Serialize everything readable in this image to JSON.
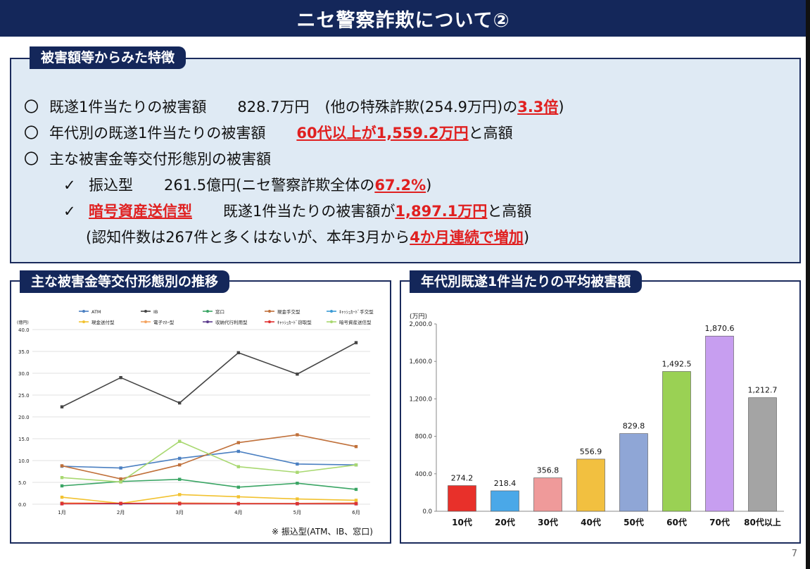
{
  "title": "ニセ警察詐欺について②",
  "features": {
    "tag": "被害額等からみた特徴",
    "b1": {
      "mark": "〇",
      "text": "既遂1件当たりの被害額",
      "value": "828.7万円",
      "note_pre": "(他の特殊詐欺(254.9万円)の",
      "note_red": "3.3倍",
      "note_post": ")"
    },
    "b2": {
      "mark": "〇",
      "text": "年代別の既遂1件当たりの被害額",
      "red": "60代以上が1,559.2万円",
      "post": "と高額"
    },
    "b3": {
      "mark": "〇",
      "text": "主な被害金等交付形態別の被害額"
    },
    "s1": {
      "mark": "✓",
      "label": "振込型",
      "value": "261.5億円(ニセ警察詐欺全体の",
      "red": "67.2%",
      "post": ")"
    },
    "s2": {
      "mark": "✓",
      "red_label": "暗号資産送信型",
      "text": "既遂1件当たりの被害額が",
      "red": "1,897.1万円",
      "post": "と高額"
    },
    "s3": {
      "pre": "(認知件数は267件と多くはないが、本年3月から",
      "red": "4か月連続で増加",
      "post": ")"
    }
  },
  "left_tag": "主な被害金等交付形態別の推移",
  "right_tag": "年代別既遂1件当たりの平均被害額",
  "left_note": "※ 振込型(ATM、IB、窓口)",
  "page_number": "7",
  "chart_data": [
    {
      "type": "line",
      "unit_label": "(億円)",
      "categories": [
        "1月",
        "2月",
        "3月",
        "4月",
        "5月",
        "6月"
      ],
      "ylim": [
        0,
        40
      ],
      "yticks": [
        "0.0",
        "5.0",
        "10.0",
        "15.0",
        "20.0",
        "25.0",
        "30.0",
        "35.0",
        "40.0"
      ],
      "series": [
        {
          "name": "ATM",
          "color": "#4a7fc1",
          "values": [
            8.7,
            8.3,
            10.5,
            12.1,
            9.2,
            9.0
          ]
        },
        {
          "name": "IB",
          "color": "#444444",
          "values": [
            22.3,
            29.0,
            23.2,
            34.7,
            29.8,
            37.0
          ]
        },
        {
          "name": "窓口",
          "color": "#3aa564",
          "values": [
            4.2,
            5.2,
            5.7,
            3.9,
            4.8,
            3.4
          ]
        },
        {
          "name": "現金手交型",
          "color": "#c0703a",
          "values": [
            8.8,
            5.8,
            9.0,
            14.1,
            15.9,
            13.2
          ]
        },
        {
          "name": "ｷｬｯｼｭｶｰﾄﾞ手交型",
          "color": "#3a9bd5",
          "values": [
            0.2,
            0.1,
            0.2,
            0.2,
            0.1,
            0.1
          ]
        },
        {
          "name": "現金送付型",
          "color": "#f2c230",
          "values": [
            1.6,
            0.2,
            2.2,
            1.7,
            1.2,
            0.9
          ]
        },
        {
          "name": "電子ﾏﾈｰ型",
          "color": "#f4a460",
          "values": [
            0.3,
            0.2,
            0.3,
            0.2,
            0.2,
            0.3
          ]
        },
        {
          "name": "収納代行利用型",
          "color": "#5b3b8c",
          "values": [
            0.1,
            0.1,
            0.1,
            0.1,
            0.1,
            0.1
          ]
        },
        {
          "name": "ｷｬｯｼｭｶｰﾄﾞ窃取型",
          "color": "#e03030",
          "values": [
            0.1,
            0.2,
            0.1,
            0.1,
            0.1,
            0.1
          ]
        },
        {
          "name": "暗号資産送信型",
          "color": "#a8d870",
          "values": [
            6.1,
            5.1,
            14.4,
            8.6,
            7.3,
            9.0
          ]
        }
      ]
    },
    {
      "type": "bar",
      "unit_label": "(万円)",
      "categories": [
        "10代",
        "20代",
        "30代",
        "40代",
        "50代",
        "60代",
        "70代",
        "80代以上"
      ],
      "values": [
        274.2,
        218.4,
        356.8,
        556.9,
        829.8,
        1492.5,
        1870.6,
        1212.7
      ],
      "value_labels": [
        "274.2",
        "218.4",
        "356.8",
        "556.9",
        "829.8",
        "1,492.5",
        "1,870.6",
        "1,212.7"
      ],
      "colors": [
        "#e8302a",
        "#4aa8e8",
        "#ef9a9a",
        "#f2c040",
        "#8fa6d6",
        "#9ad154",
        "#c79ef0",
        "#a4a4a4"
      ],
      "ylim": [
        0,
        2000
      ],
      "yticks": [
        "0.0",
        "400.0",
        "800.0",
        "1,200.0",
        "1,600.0",
        "2,000.0"
      ]
    }
  ]
}
